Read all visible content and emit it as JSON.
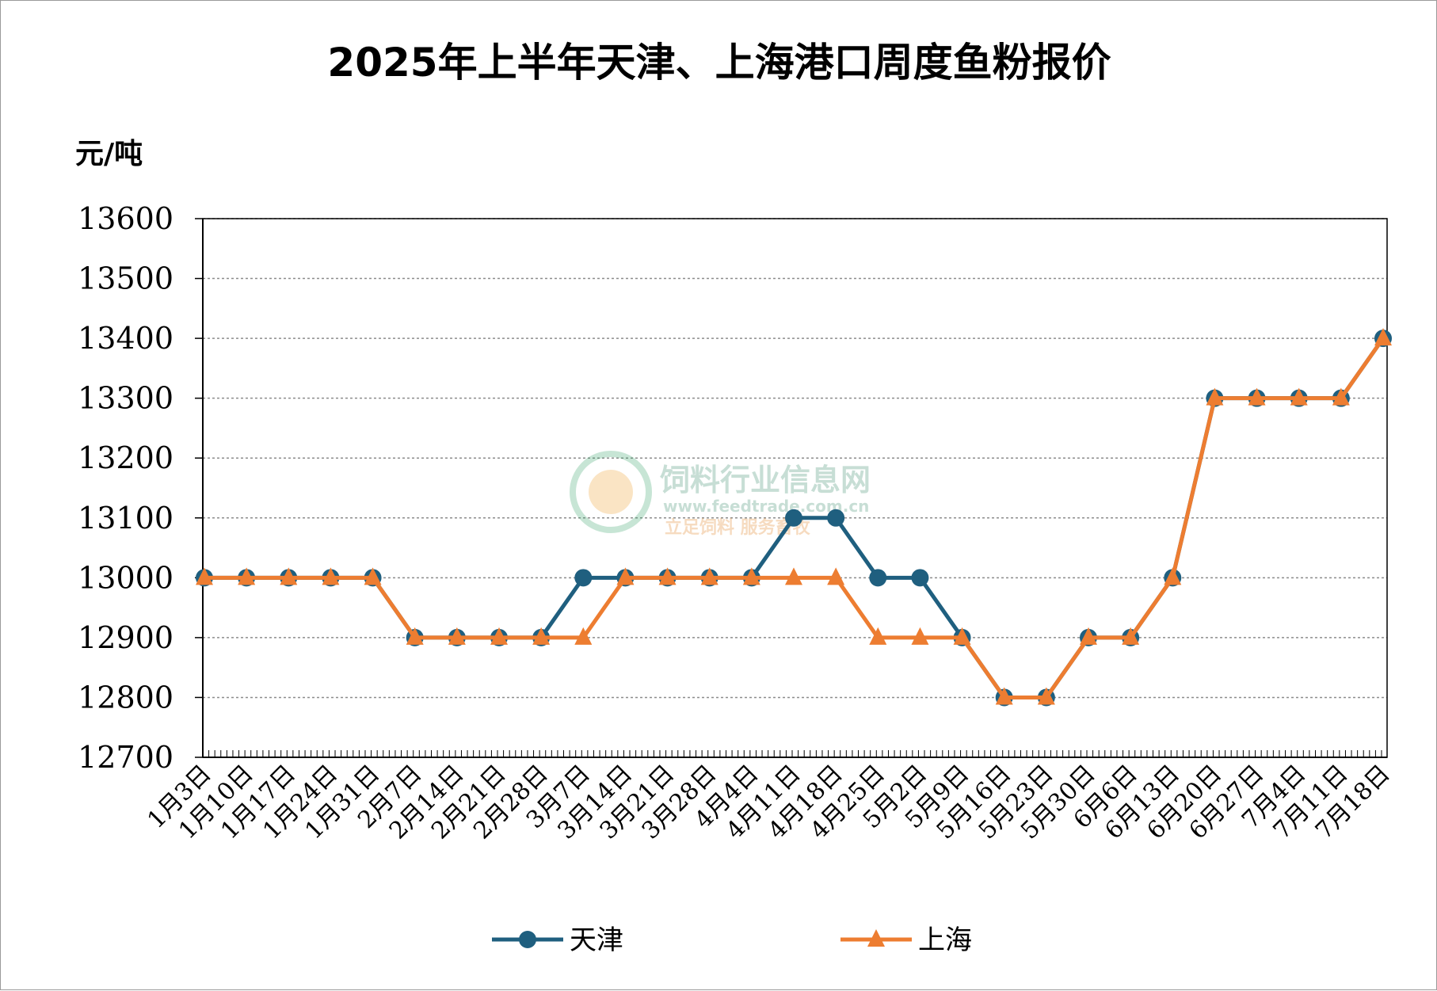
{
  "chart_data": {
    "type": "line",
    "title": "2025年上半年天津、上海港口周度鱼粉报价",
    "ylabel": "元/吨",
    "ylim": [
      12700,
      13600
    ],
    "yticks": [
      13600,
      13500,
      13400,
      13300,
      13200,
      13100,
      13000,
      12900,
      12800,
      12700
    ],
    "grid": true,
    "legend_position": "bottom",
    "categories": [
      "1月3日",
      "1月10日",
      "1月17日",
      "1月24日",
      "1月31日",
      "2月7日",
      "2月14日",
      "2月21日",
      "2月28日",
      "3月7日",
      "3月14日",
      "3月21日",
      "3月28日",
      "4月4日",
      "4月11日",
      "4月18日",
      "4月25日",
      "5月2日",
      "5月9日",
      "5月16日",
      "5月23日",
      "5月30日",
      "6月6日",
      "6月13日",
      "6月20日",
      "6月27日",
      "7月4日",
      "7月11日",
      "7月18日"
    ],
    "series": [
      {
        "name": "天津",
        "color": "#1F5F7F",
        "marker": "circle",
        "values": [
          13000,
          13000,
          13000,
          13000,
          13000,
          12900,
          12900,
          12900,
          12900,
          13000,
          13000,
          13000,
          13000,
          13000,
          13100,
          13100,
          13000,
          13000,
          12900,
          12800,
          12800,
          12900,
          12900,
          13000,
          13300,
          13300,
          13300,
          13300,
          13400
        ]
      },
      {
        "name": "上海",
        "color": "#ED7D31",
        "marker": "triangle",
        "values": [
          13000,
          13000,
          13000,
          13000,
          13000,
          12900,
          12900,
          12900,
          12900,
          12900,
          13000,
          13000,
          13000,
          13000,
          13000,
          13000,
          12900,
          12900,
          12900,
          12800,
          12800,
          12900,
          12900,
          13000,
          13300,
          13300,
          13300,
          13300,
          13400
        ]
      }
    ]
  },
  "watermark": {
    "name": "饲料行业信息网",
    "url": "www.feedtrade.com.cn",
    "slogan": "立足饲料 服务畜牧"
  }
}
